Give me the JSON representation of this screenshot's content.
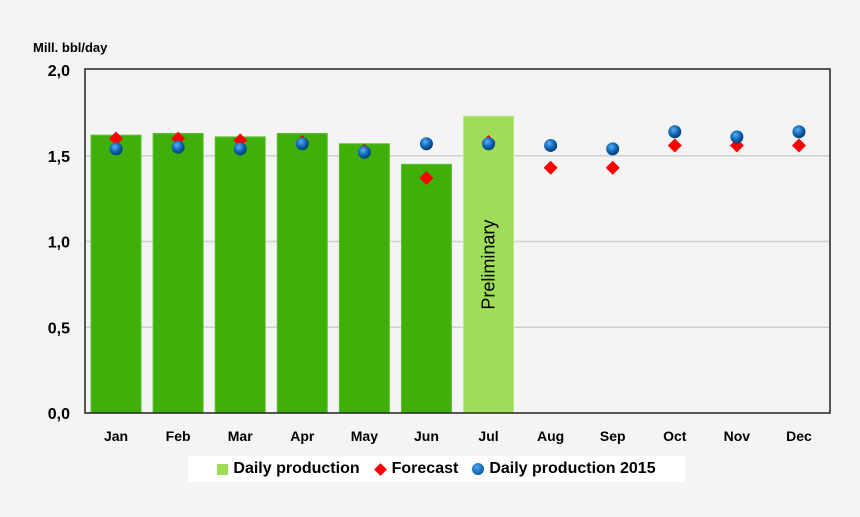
{
  "chart_data": {
    "type": "bar",
    "ylabel": "Mill. bbl/day",
    "ylim": [
      0,
      2.0
    ],
    "yticks": [
      "0,0",
      "0,5",
      "1,0",
      "1,5",
      "2,0"
    ],
    "grid": true,
    "legend_position": "bottom",
    "categories": [
      "Jan",
      "Feb",
      "Mar",
      "Apr",
      "May",
      "Jun",
      "Jul",
      "Aug",
      "Sep",
      "Oct",
      "Nov",
      "Dec"
    ],
    "series": [
      {
        "name": "Daily production",
        "kind": "bar",
        "color": "#3fb00a",
        "preliminary_color": "#9fdc58",
        "values": [
          1.62,
          1.63,
          1.61,
          1.63,
          1.57,
          1.45,
          1.73,
          null,
          null,
          null,
          null,
          null
        ]
      },
      {
        "name": "Forecast",
        "kind": "diamond",
        "color": "#ff0000",
        "values": [
          1.6,
          1.6,
          1.59,
          1.58,
          1.53,
          1.37,
          1.58,
          1.43,
          1.43,
          1.56,
          1.56,
          1.56
        ]
      },
      {
        "name": "Daily production 2015",
        "kind": "circle",
        "color": "#0b63b5",
        "values": [
          1.54,
          1.55,
          1.54,
          1.57,
          1.52,
          1.57,
          1.57,
          1.56,
          1.54,
          1.64,
          1.61,
          1.64
        ]
      }
    ],
    "annotations": [
      {
        "category": "Jul",
        "text": "Preliminary"
      }
    ]
  }
}
